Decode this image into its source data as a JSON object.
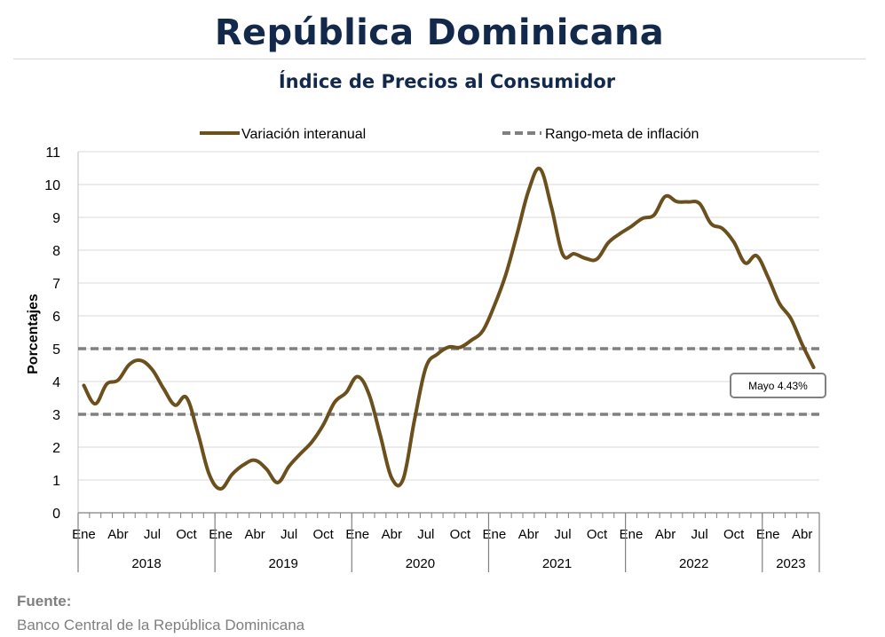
{
  "header": {
    "title": "República Dominicana",
    "subtitle": "Índice de Precios al Consumidor"
  },
  "source": {
    "label": "Fuente:",
    "text": "Banco Central de la República Dominicana"
  },
  "colors": {
    "series": "#6b4f1d",
    "target": "#808080",
    "grid": "#d9d9d9",
    "title": "#13294b"
  },
  "chart_data": {
    "type": "line",
    "ylabel": "Porcentajes",
    "ylim": [
      0,
      11
    ],
    "yticks": [
      0,
      1,
      2,
      3,
      4,
      5,
      6,
      7,
      8,
      9,
      10,
      11
    ],
    "grid": true,
    "legend_position": "top",
    "month_tick_labels": [
      "Ene",
      "Abr",
      "Jul",
      "Oct"
    ],
    "years": [
      "2018",
      "2019",
      "2020",
      "2021",
      "2022",
      "2023"
    ],
    "x_range": [
      "2018-01",
      "2023-05"
    ],
    "series": [
      {
        "name": "Variación interanual",
        "style": "solid",
        "x": [
          "2018-01",
          "2018-02",
          "2018-03",
          "2018-04",
          "2018-05",
          "2018-06",
          "2018-07",
          "2018-08",
          "2018-09",
          "2018-10",
          "2018-11",
          "2018-12",
          "2019-01",
          "2019-02",
          "2019-03",
          "2019-04",
          "2019-05",
          "2019-06",
          "2019-07",
          "2019-08",
          "2019-09",
          "2019-10",
          "2019-11",
          "2019-12",
          "2020-01",
          "2020-02",
          "2020-03",
          "2020-04",
          "2020-05",
          "2020-06",
          "2020-07",
          "2020-08",
          "2020-09",
          "2020-10",
          "2020-11",
          "2020-12",
          "2021-01",
          "2021-02",
          "2021-03",
          "2021-04",
          "2021-05",
          "2021-06",
          "2021-07",
          "2021-08",
          "2021-09",
          "2021-10",
          "2021-11",
          "2021-12",
          "2022-01",
          "2022-02",
          "2022-03",
          "2022-04",
          "2022-05",
          "2022-06",
          "2022-07",
          "2022-08",
          "2022-09",
          "2022-10",
          "2022-11",
          "2022-12",
          "2023-01",
          "2023-02",
          "2023-03",
          "2023-04",
          "2023-05"
        ],
        "y": [
          3.88,
          3.32,
          3.92,
          4.04,
          4.52,
          4.64,
          4.36,
          3.78,
          3.28,
          3.51,
          2.43,
          1.17,
          0.73,
          1.17,
          1.46,
          1.6,
          1.34,
          0.92,
          1.42,
          1.8,
          2.16,
          2.68,
          3.37,
          3.66,
          4.15,
          3.62,
          2.36,
          1.06,
          1.02,
          2.83,
          4.43,
          4.83,
          5.05,
          5.04,
          5.26,
          5.55,
          6.31,
          7.25,
          8.5,
          9.81,
          10.48,
          9.32,
          7.87,
          7.89,
          7.75,
          7.73,
          8.23,
          8.5,
          8.72,
          8.97,
          9.07,
          9.64,
          9.48,
          9.47,
          9.42,
          8.81,
          8.66,
          8.25,
          7.61,
          7.83,
          7.18,
          6.38,
          5.92,
          5.13,
          4.43
        ]
      },
      {
        "name": "Rango-meta de inflación",
        "style": "dashed",
        "y_lines": [
          3,
          5
        ]
      }
    ],
    "annotation": {
      "text": "Mayo 4.43%",
      "x": "2023-05",
      "y": 4.43
    }
  }
}
